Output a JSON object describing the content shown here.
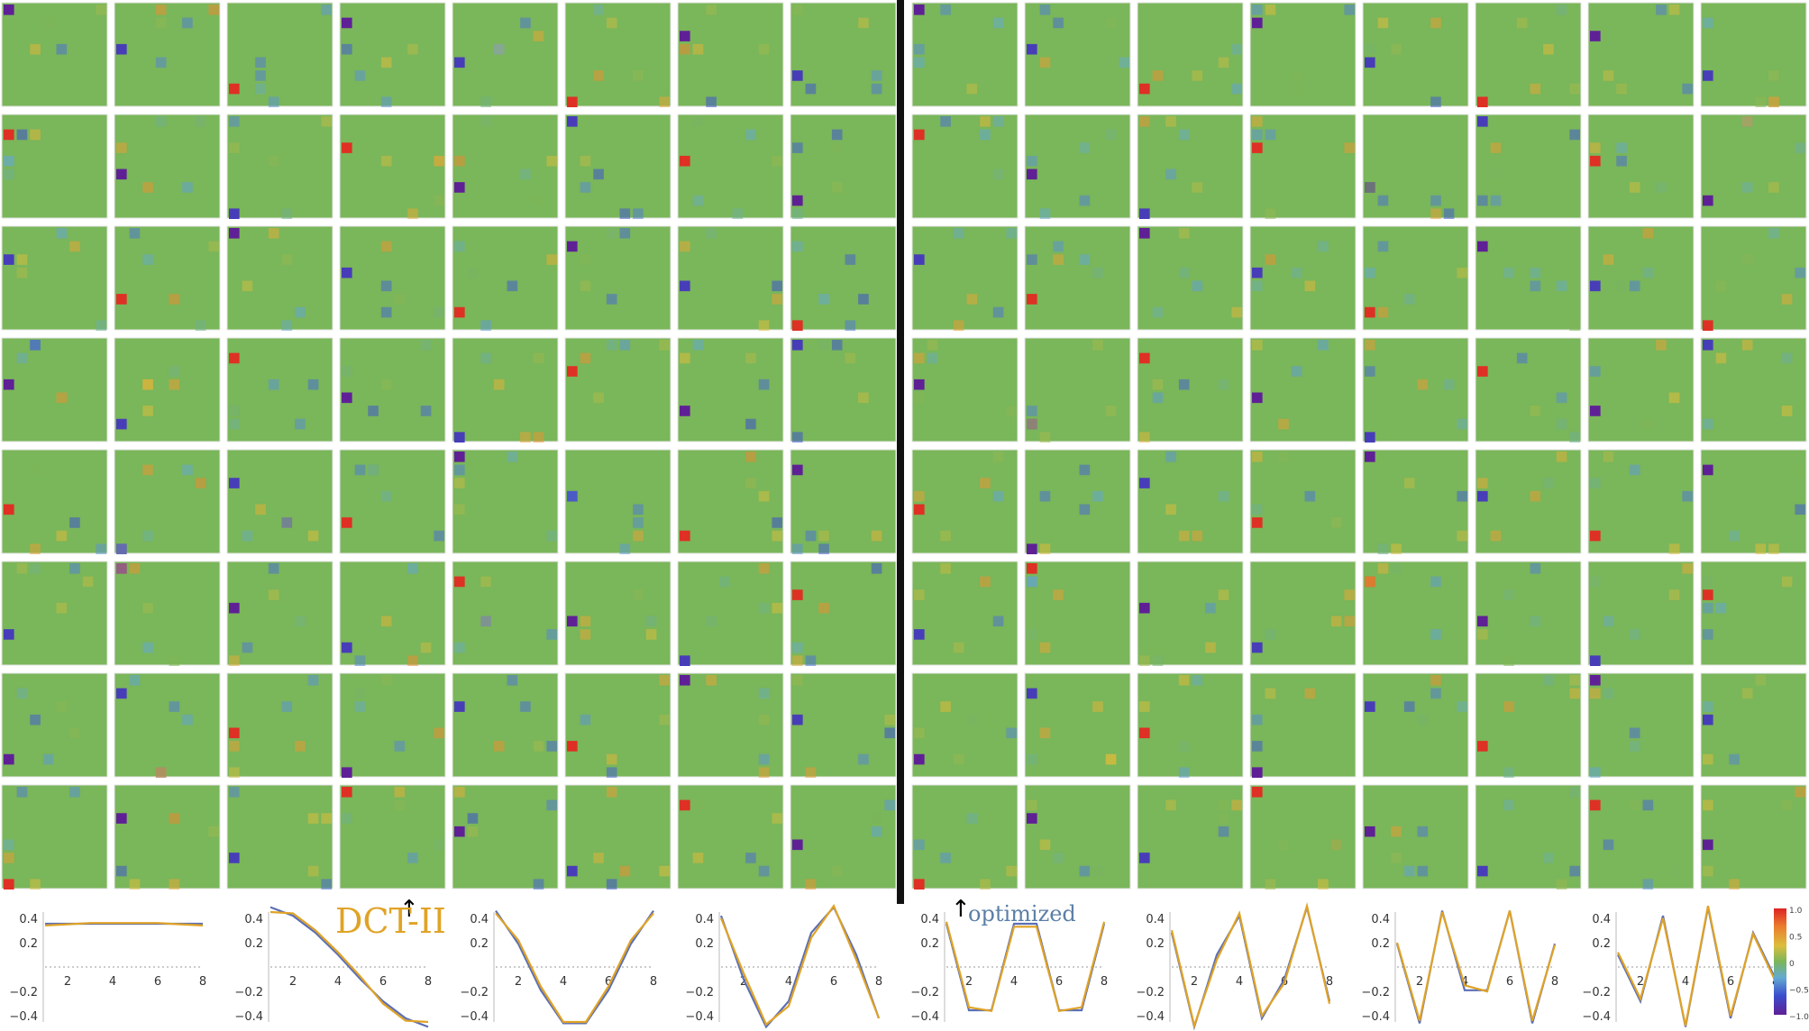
{
  "chart_data": [
    {
      "type": "heatmap",
      "description_side": "left",
      "grid": "8x8 panels of 8x8 coefficient matrices",
      "colorscale": {
        "min": -1.0,
        "max": 1.0
      }
    },
    {
      "type": "heatmap",
      "description_side": "right",
      "grid": "8x8 panels of 8x8 coefficient matrices",
      "colorscale": {
        "min": -1.0,
        "max": 1.0
      }
    },
    {
      "type": "line",
      "panels": 8,
      "x": [
        1,
        2,
        3,
        4,
        5,
        6,
        7,
        8
      ],
      "xticks": [
        "2",
        "4",
        "6",
        "8"
      ],
      "yticks": [
        "0.4",
        "0.2",
        "−0.2",
        "−0.4"
      ],
      "ylim": [
        -0.45,
        0.45
      ],
      "series": [
        {
          "color": "#5b6fb5",
          "values_by_panel": [
            [
              0.354,
              0.354,
              0.354,
              0.354,
              0.354,
              0.354,
              0.354,
              0.354
            ],
            [
              0.49,
              0.42,
              0.28,
              0.1,
              -0.1,
              -0.28,
              -0.42,
              -0.49
            ],
            [
              0.46,
              0.19,
              -0.19,
              -0.46,
              -0.46,
              -0.19,
              0.19,
              0.46
            ],
            [
              0.42,
              -0.1,
              -0.49,
              -0.28,
              0.28,
              0.49,
              0.1,
              -0.42
            ],
            [
              0.354,
              -0.354,
              -0.354,
              0.354,
              0.354,
              -0.354,
              -0.354,
              0.354
            ],
            [
              0.28,
              -0.49,
              0.1,
              0.42,
              -0.42,
              -0.1,
              0.49,
              -0.28
            ],
            [
              0.19,
              -0.46,
              0.46,
              -0.19,
              -0.19,
              0.46,
              -0.46,
              0.19
            ],
            [
              0.1,
              -0.28,
              0.42,
              -0.49,
              0.49,
              -0.42,
              0.28,
              -0.1
            ]
          ]
        },
        {
          "color": "#e0a326",
          "values_by_panel": [
            [
              0.34,
              0.35,
              0.36,
              0.36,
              0.36,
              0.36,
              0.35,
              0.34
            ],
            [
              0.45,
              0.44,
              0.3,
              0.12,
              -0.08,
              -0.3,
              -0.44,
              -0.45
            ],
            [
              0.44,
              0.22,
              -0.16,
              -0.45,
              -0.45,
              -0.16,
              0.22,
              0.44
            ],
            [
              0.4,
              -0.05,
              -0.47,
              -0.32,
              0.24,
              0.5,
              0.06,
              -0.42
            ],
            [
              0.37,
              -0.33,
              -0.36,
              0.33,
              0.33,
              -0.36,
              -0.33,
              0.37
            ],
            [
              0.3,
              -0.48,
              0.06,
              0.44,
              -0.4,
              -0.13,
              0.5,
              -0.3
            ],
            [
              0.2,
              -0.44,
              0.45,
              -0.15,
              -0.2,
              0.46,
              -0.44,
              0.18
            ],
            [
              0.12,
              -0.26,
              0.4,
              -0.48,
              0.5,
              -0.4,
              0.27,
              -0.12
            ]
          ]
        }
      ]
    }
  ],
  "annotations": {
    "dct_label": "DCT-II",
    "optimized_label": "optimized",
    "arrow_glyph": "↑"
  },
  "colorbar": {
    "ticks": [
      "1.0",
      "0.5",
      "0",
      "−0.5",
      "−1.0"
    ]
  }
}
